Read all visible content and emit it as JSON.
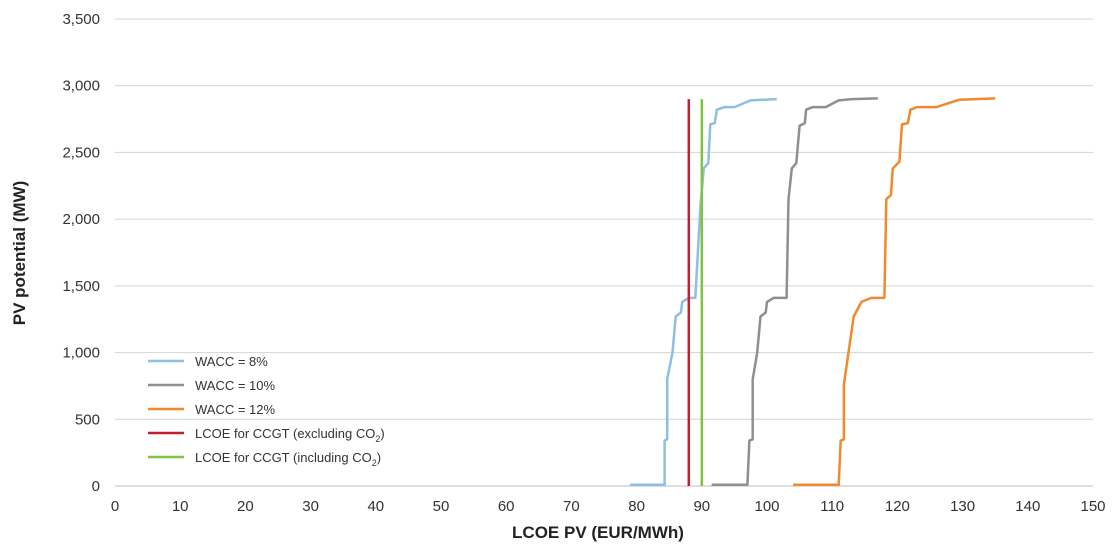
{
  "chart_data": {
    "type": "line",
    "xlabel": "LCOE PV (EUR/MWh)",
    "ylabel": "PV potential (MW)",
    "xlim": [
      0,
      150
    ],
    "ylim": [
      0,
      3500
    ],
    "x_ticks": [
      0,
      10,
      20,
      30,
      40,
      50,
      60,
      70,
      80,
      90,
      100,
      110,
      120,
      130,
      140,
      150
    ],
    "y_ticks": [
      0,
      500,
      1000,
      1500,
      2000,
      2500,
      3000,
      3500
    ],
    "x_tick_labels": [
      "0",
      "10",
      "20",
      "30",
      "40",
      "50",
      "60",
      "70",
      "80",
      "90",
      "100",
      "110",
      "120",
      "130",
      "140",
      "150"
    ],
    "y_tick_labels": [
      "0",
      "500",
      "1,000",
      "1,500",
      "2,000",
      "2,500",
      "3,000",
      "3,500"
    ],
    "grid": "horizontal",
    "legend_position": "bottom-left",
    "series": [
      {
        "name": "WACC = 8%",
        "color": "#8fbfe0",
        "points": [
          [
            79,
            10
          ],
          [
            84.3,
            10
          ],
          [
            84.3,
            340
          ],
          [
            84.7,
            350
          ],
          [
            84.7,
            800
          ],
          [
            85.5,
            1000
          ],
          [
            86,
            1270
          ],
          [
            86.8,
            1300
          ],
          [
            87,
            1380
          ],
          [
            88,
            1410
          ],
          [
            89,
            1410
          ],
          [
            89.8,
            2100
          ],
          [
            90.3,
            2380
          ],
          [
            91,
            2420
          ],
          [
            91.3,
            2710
          ],
          [
            92,
            2720
          ],
          [
            92.3,
            2820
          ],
          [
            93.5,
            2840
          ],
          [
            95,
            2840
          ],
          [
            97.5,
            2890
          ],
          [
            101.5,
            2900
          ]
        ]
      },
      {
        "name": "WACC = 10%",
        "color": "#8e8f96",
        "points": [
          [
            91.5,
            10
          ],
          [
            97,
            10
          ],
          [
            97.3,
            340
          ],
          [
            97.8,
            350
          ],
          [
            97.8,
            800
          ],
          [
            98.5,
            1000
          ],
          [
            99,
            1270
          ],
          [
            99.8,
            1300
          ],
          [
            100,
            1380
          ],
          [
            101,
            1410
          ],
          [
            103,
            1410
          ],
          [
            103.3,
            2150
          ],
          [
            103.8,
            2380
          ],
          [
            104.5,
            2420
          ],
          [
            105,
            2700
          ],
          [
            105.8,
            2720
          ],
          [
            106,
            2820
          ],
          [
            107,
            2840
          ],
          [
            109,
            2840
          ],
          [
            111,
            2890
          ],
          [
            113,
            2900
          ],
          [
            117,
            2905
          ]
        ]
      },
      {
        "name": "WACC = 12%",
        "color": "#f08a2c",
        "points": [
          [
            104,
            10
          ],
          [
            111,
            10
          ],
          [
            111.3,
            340
          ],
          [
            111.8,
            350
          ],
          [
            111.8,
            760
          ],
          [
            112.5,
            1000
          ],
          [
            113.3,
            1270
          ],
          [
            114.5,
            1380
          ],
          [
            116,
            1410
          ],
          [
            118,
            1410
          ],
          [
            118.3,
            2150
          ],
          [
            119,
            2180
          ],
          [
            119.3,
            2380
          ],
          [
            120.3,
            2430
          ],
          [
            120.7,
            2710
          ],
          [
            121.6,
            2720
          ],
          [
            122,
            2820
          ],
          [
            123,
            2840
          ],
          [
            126,
            2840
          ],
          [
            129.5,
            2895
          ],
          [
            135,
            2905
          ]
        ]
      },
      {
        "name": "LCOE for CCGT (excluding CO",
        "name_sub": "2",
        "name_end": ")",
        "color": "#c0202f",
        "points": [
          [
            88,
            0
          ],
          [
            88,
            2900
          ]
        ]
      },
      {
        "name": "LCOE for CCGT (including CO",
        "name_sub": "2",
        "name_end": ")",
        "color": "#80c342",
        "points": [
          [
            90,
            0
          ],
          [
            90,
            2900
          ]
        ]
      }
    ]
  }
}
